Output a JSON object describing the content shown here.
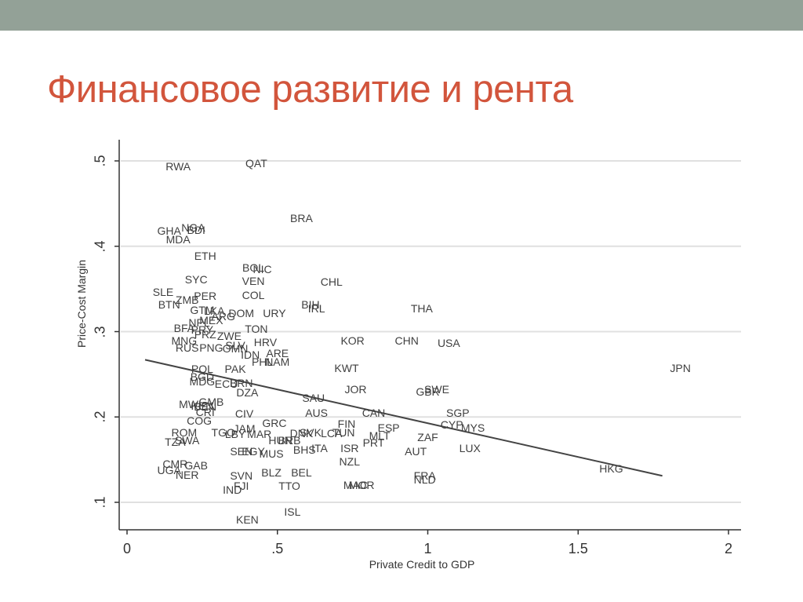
{
  "slide": {
    "title": "Финансовое развитие и рента",
    "colors": {
      "topbar": "#93a197",
      "title": "#d2553c",
      "axis": "#333333",
      "grid": "#e0e0e0",
      "labels": "#3f3f3f"
    }
  },
  "chart_data": {
    "type": "scatter",
    "title": "",
    "xlabel": "Private Credit to GDP",
    "ylabel": "Price-Cost Margin",
    "xlim": [
      -0.02,
      2.05
    ],
    "ylim": [
      0.065,
      0.53
    ],
    "xticks": [
      {
        "v": 0,
        "label": "0"
      },
      {
        "v": 0.5,
        "label": ".5"
      },
      {
        "v": 1,
        "label": "1"
      },
      {
        "v": 1.5,
        "label": "1.5"
      },
      {
        "v": 2,
        "label": "2"
      }
    ],
    "yticks": [
      {
        "v": 0.1,
        "label": ".1"
      },
      {
        "v": 0.2,
        "label": ".2"
      },
      {
        "v": 0.3,
        "label": ".3"
      },
      {
        "v": 0.4,
        "label": ".4"
      },
      {
        "v": 0.5,
        "label": ".5"
      }
    ],
    "grid": "horizontal",
    "marker": "country-code-labels",
    "fit_line": {
      "x": [
        0.06,
        1.78
      ],
      "y": [
        0.267,
        0.131
      ]
    },
    "points": [
      {
        "label": "RWA",
        "x": 0.17,
        "y": 0.494
      },
      {
        "label": "QAT",
        "x": 0.43,
        "y": 0.497
      },
      {
        "label": "BRA",
        "x": 0.58,
        "y": 0.433
      },
      {
        "label": "GHA",
        "x": 0.14,
        "y": 0.418
      },
      {
        "label": "NGA",
        "x": 0.22,
        "y": 0.422
      },
      {
        "label": "BDI",
        "x": 0.23,
        "y": 0.419
      },
      {
        "label": "MDA",
        "x": 0.17,
        "y": 0.408
      },
      {
        "label": "ETH",
        "x": 0.26,
        "y": 0.389
      },
      {
        "label": "BOL",
        "x": 0.42,
        "y": 0.375
      },
      {
        "label": "NIC",
        "x": 0.45,
        "y": 0.373
      },
      {
        "label": "SYC",
        "x": 0.23,
        "y": 0.361
      },
      {
        "label": "VEN",
        "x": 0.42,
        "y": 0.359
      },
      {
        "label": "CHL",
        "x": 0.68,
        "y": 0.358
      },
      {
        "label": "SLE",
        "x": 0.12,
        "y": 0.346
      },
      {
        "label": "PER",
        "x": 0.26,
        "y": 0.342
      },
      {
        "label": "COL",
        "x": 0.42,
        "y": 0.343
      },
      {
        "label": "ZMB",
        "x": 0.2,
        "y": 0.337
      },
      {
        "label": "BTN",
        "x": 0.14,
        "y": 0.332
      },
      {
        "label": "BIH",
        "x": 0.61,
        "y": 0.332
      },
      {
        "label": "IRL",
        "x": 0.63,
        "y": 0.327
      },
      {
        "label": "THA",
        "x": 0.98,
        "y": 0.327
      },
      {
        "label": "GTM",
        "x": 0.25,
        "y": 0.325
      },
      {
        "label": "LKA",
        "x": 0.29,
        "y": 0.324
      },
      {
        "label": "DOM",
        "x": 0.38,
        "y": 0.322
      },
      {
        "label": "URY",
        "x": 0.49,
        "y": 0.322
      },
      {
        "label": "ARG",
        "x": 0.32,
        "y": 0.318
      },
      {
        "label": "MEX",
        "x": 0.28,
        "y": 0.313
      },
      {
        "label": "NPL",
        "x": 0.24,
        "y": 0.311
      },
      {
        "label": "BFA",
        "x": 0.19,
        "y": 0.304
      },
      {
        "label": "PRY",
        "x": 0.25,
        "y": 0.302
      },
      {
        "label": "TON",
        "x": 0.43,
        "y": 0.303
      },
      {
        "label": "PRZ",
        "x": 0.26,
        "y": 0.297
      },
      {
        "label": "ZWE",
        "x": 0.34,
        "y": 0.295
      },
      {
        "label": "MNG",
        "x": 0.19,
        "y": 0.289
      },
      {
        "label": "HRV",
        "x": 0.46,
        "y": 0.288
      },
      {
        "label": "KOR",
        "x": 0.75,
        "y": 0.289
      },
      {
        "label": "CHN",
        "x": 0.93,
        "y": 0.289
      },
      {
        "label": "USA",
        "x": 1.07,
        "y": 0.287
      },
      {
        "label": "SLV",
        "x": 0.36,
        "y": 0.284
      },
      {
        "label": "RUS",
        "x": 0.2,
        "y": 0.281
      },
      {
        "label": "PNG",
        "x": 0.28,
        "y": 0.281
      },
      {
        "label": "OMN",
        "x": 0.36,
        "y": 0.28
      },
      {
        "label": "IDN",
        "x": 0.41,
        "y": 0.273
      },
      {
        "label": "ARE",
        "x": 0.5,
        "y": 0.275
      },
      {
        "label": "PHL",
        "x": 0.45,
        "y": 0.265
      },
      {
        "label": "NAM",
        "x": 0.5,
        "y": 0.265
      },
      {
        "label": "POL",
        "x": 0.25,
        "y": 0.256
      },
      {
        "label": "PAK",
        "x": 0.36,
        "y": 0.256
      },
      {
        "label": "KWT",
        "x": 0.73,
        "y": 0.257
      },
      {
        "label": "JPN",
        "x": 1.84,
        "y": 0.257
      },
      {
        "label": "BGD",
        "x": 0.25,
        "y": 0.247
      },
      {
        "label": "MDG",
        "x": 0.25,
        "y": 0.242
      },
      {
        "label": "ECU",
        "x": 0.33,
        "y": 0.239
      },
      {
        "label": "BRN",
        "x": 0.38,
        "y": 0.24
      },
      {
        "label": "JOR",
        "x": 0.76,
        "y": 0.232
      },
      {
        "label": "GBR",
        "x": 1.0,
        "y": 0.23
      },
      {
        "label": "SWE",
        "x": 1.03,
        "y": 0.232
      },
      {
        "label": "DZA",
        "x": 0.4,
        "y": 0.229
      },
      {
        "label": "SAU",
        "x": 0.62,
        "y": 0.222
      },
      {
        "label": "GMB",
        "x": 0.28,
        "y": 0.218
      },
      {
        "label": "MWI",
        "x": 0.21,
        "y": 0.215
      },
      {
        "label": "BEN",
        "x": 0.26,
        "y": 0.212
      },
      {
        "label": "KEN2",
        "x": 0.25,
        "y": 0.213
      },
      {
        "label": "AUS",
        "x": 0.63,
        "y": 0.205
      },
      {
        "label": "CAN",
        "x": 0.82,
        "y": 0.205
      },
      {
        "label": "SGP",
        "x": 1.1,
        "y": 0.205
      },
      {
        "label": "CRI",
        "x": 0.26,
        "y": 0.206
      },
      {
        "label": "CIV",
        "x": 0.39,
        "y": 0.204
      },
      {
        "label": "COG",
        "x": 0.24,
        "y": 0.196
      },
      {
        "label": "CYP",
        "x": 1.08,
        "y": 0.191
      },
      {
        "label": "MYS",
        "x": 1.15,
        "y": 0.187
      },
      {
        "label": "GRC",
        "x": 0.49,
        "y": 0.193
      },
      {
        "label": "FIN",
        "x": 0.73,
        "y": 0.192
      },
      {
        "label": "ESP",
        "x": 0.87,
        "y": 0.187
      },
      {
        "label": "JAM",
        "x": 0.39,
        "y": 0.186
      },
      {
        "label": "ROM",
        "x": 0.19,
        "y": 0.182
      },
      {
        "label": "TGO",
        "x": 0.32,
        "y": 0.182
      },
      {
        "label": "LBY",
        "x": 0.36,
        "y": 0.18
      },
      {
        "label": "MAR",
        "x": 0.44,
        "y": 0.18
      },
      {
        "label": "DNK",
        "x": 0.58,
        "y": 0.181
      },
      {
        "label": "SVK",
        "x": 0.61,
        "y": 0.182
      },
      {
        "label": "LCA",
        "x": 0.68,
        "y": 0.181
      },
      {
        "label": "TUN",
        "x": 0.72,
        "y": 0.182
      },
      {
        "label": "MLT",
        "x": 0.84,
        "y": 0.178
      },
      {
        "label": "ZAF",
        "x": 1.0,
        "y": 0.176
      },
      {
        "label": "TZA",
        "x": 0.16,
        "y": 0.171
      },
      {
        "label": "SWA",
        "x": 0.2,
        "y": 0.173
      },
      {
        "label": "HUN",
        "x": 0.51,
        "y": 0.173
      },
      {
        "label": "BRB",
        "x": 0.54,
        "y": 0.173
      },
      {
        "label": "PRT",
        "x": 0.82,
        "y": 0.17
      },
      {
        "label": "ISR",
        "x": 0.74,
        "y": 0.163
      },
      {
        "label": "AUT",
        "x": 0.96,
        "y": 0.16
      },
      {
        "label": "LUX",
        "x": 1.14,
        "y": 0.163
      },
      {
        "label": "SEN",
        "x": 0.38,
        "y": 0.16
      },
      {
        "label": "EGY",
        "x": 0.42,
        "y": 0.16
      },
      {
        "label": "MUS",
        "x": 0.48,
        "y": 0.157
      },
      {
        "label": "BHS",
        "x": 0.59,
        "y": 0.162
      },
      {
        "label": "ITA",
        "x": 0.64,
        "y": 0.163
      },
      {
        "label": "NZL",
        "x": 0.74,
        "y": 0.148
      },
      {
        "label": "CMR",
        "x": 0.16,
        "y": 0.145
      },
      {
        "label": "GAB",
        "x": 0.23,
        "y": 0.143
      },
      {
        "label": "UGA",
        "x": 0.14,
        "y": 0.138
      },
      {
        "label": "NER",
        "x": 0.2,
        "y": 0.132
      },
      {
        "label": "HKG",
        "x": 1.61,
        "y": 0.14
      },
      {
        "label": "SVN",
        "x": 0.38,
        "y": 0.131
      },
      {
        "label": "BLZ",
        "x": 0.48,
        "y": 0.135
      },
      {
        "label": "BEL",
        "x": 0.58,
        "y": 0.135
      },
      {
        "label": "FRA",
        "x": 0.99,
        "y": 0.131
      },
      {
        "label": "NLD",
        "x": 0.99,
        "y": 0.127
      },
      {
        "label": "MAC",
        "x": 0.76,
        "y": 0.12
      },
      {
        "label": "MOR",
        "x": 0.78,
        "y": 0.12
      },
      {
        "label": "FJI",
        "x": 0.38,
        "y": 0.119
      },
      {
        "label": "IND",
        "x": 0.35,
        "y": 0.115
      },
      {
        "label": "TTO",
        "x": 0.54,
        "y": 0.119
      },
      {
        "label": "ISL",
        "x": 0.55,
        "y": 0.089
      },
      {
        "label": "KEN",
        "x": 0.4,
        "y": 0.08
      }
    ]
  }
}
